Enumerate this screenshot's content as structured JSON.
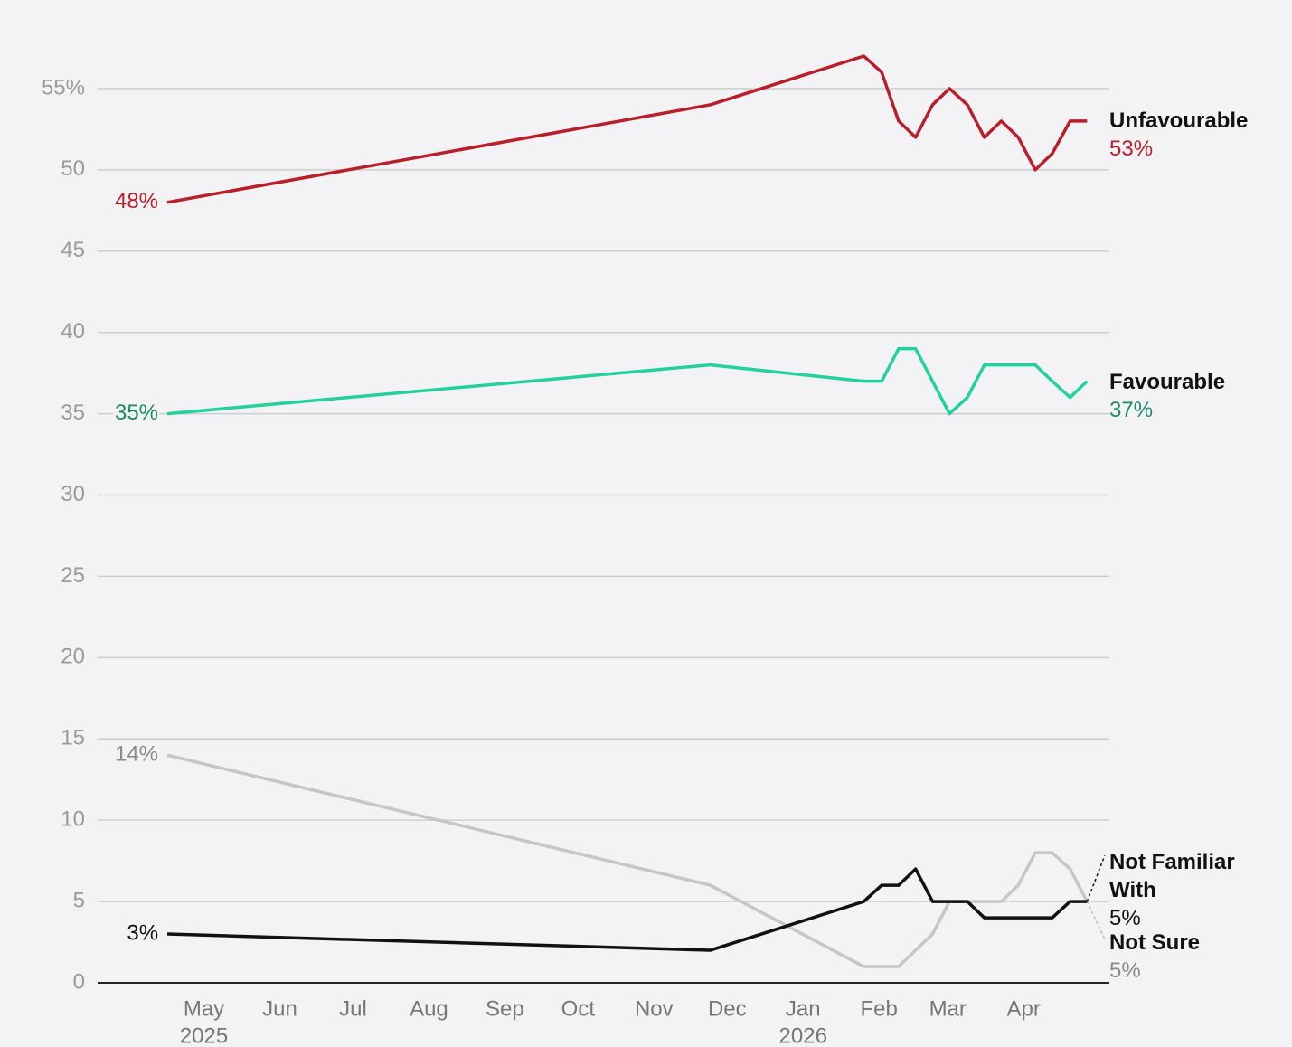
{
  "chart_data": {
    "type": "line",
    "x": [
      2025.288,
      2025.896,
      2026.068,
      2026.088,
      2026.107,
      2026.126,
      2026.145,
      2026.164,
      2026.184,
      2026.203,
      2026.222,
      2026.241,
      2026.26,
      2026.279,
      2026.299,
      2026.318
    ],
    "series": [
      {
        "name": "Not Sure",
        "color": "#c6c6c6",
        "label_color": "#8a8a8a",
        "values": [
          14,
          6,
          1,
          1,
          1,
          2,
          3,
          5,
          5,
          5,
          5,
          6,
          8,
          8,
          7,
          5
        ],
        "value_labels": [
          "14%",
          null,
          null,
          null,
          null,
          null,
          null,
          null,
          null,
          null,
          null,
          null,
          null,
          null,
          null,
          "5%"
        ]
      },
      {
        "name": "Not Familiar With",
        "color": "#111111",
        "label_color": "#111111",
        "values": [
          3,
          2,
          5,
          6,
          6,
          7,
          5,
          5,
          5,
          4,
          4,
          4,
          4,
          4,
          5,
          5
        ],
        "value_labels": [
          "3%",
          null,
          null,
          null,
          null,
          null,
          null,
          null,
          null,
          null,
          null,
          null,
          null,
          null,
          null,
          "5%"
        ]
      },
      {
        "name": "Favourable",
        "color": "#22d19c",
        "label_color": "#1b8a67",
        "values": [
          35,
          38,
          37,
          37,
          39,
          39,
          37,
          35,
          36,
          38,
          38,
          38,
          38,
          37,
          36,
          37
        ],
        "value_labels": [
          "35%",
          null,
          null,
          null,
          null,
          null,
          null,
          null,
          null,
          null,
          null,
          null,
          null,
          null,
          null,
          "37%"
        ]
      },
      {
        "name": "Unfavourable",
        "color": "#b81f2a",
        "label_color": "#b81f2a",
        "values": [
          48,
          54,
          57,
          56,
          53,
          52,
          54,
          55,
          54,
          52,
          53,
          52,
          50,
          51,
          53,
          53
        ],
        "value_labels": [
          "48%",
          null,
          null,
          null,
          null,
          null,
          null,
          null,
          null,
          null,
          null,
          null,
          null,
          null,
          null,
          "53%"
        ]
      }
    ],
    "xlim": [
      2025.21,
      2026.343
    ],
    "xticks": [
      {
        "value": 2025.329,
        "label": "May"
      },
      {
        "value": 2025.414,
        "label": "Jun"
      },
      {
        "value": 2025.496,
        "label": "Jul"
      },
      {
        "value": 2025.581,
        "label": "Aug"
      },
      {
        "value": 2025.666,
        "label": "Sep"
      },
      {
        "value": 2025.748,
        "label": "Oct"
      },
      {
        "value": 2025.833,
        "label": "Nov"
      },
      {
        "value": 2025.915,
        "label": "Dec"
      },
      {
        "value": 2026,
        "label": "Jan"
      },
      {
        "value": 2026.085,
        "label": "Feb"
      },
      {
        "value": 2026.162,
        "label": "Mar"
      },
      {
        "value": 2026.247,
        "label": "Apr"
      }
    ],
    "x_year_labels": [
      {
        "value": 2025.329,
        "label": "2025"
      },
      {
        "value": 2026,
        "label": "2026"
      }
    ],
    "ylim": [
      0,
      58
    ],
    "yticks": [
      0,
      5,
      10,
      15,
      20,
      25,
      30,
      35,
      40,
      45,
      50,
      {
        "value": 55,
        "label": "55%"
      }
    ],
    "grid": true
  }
}
